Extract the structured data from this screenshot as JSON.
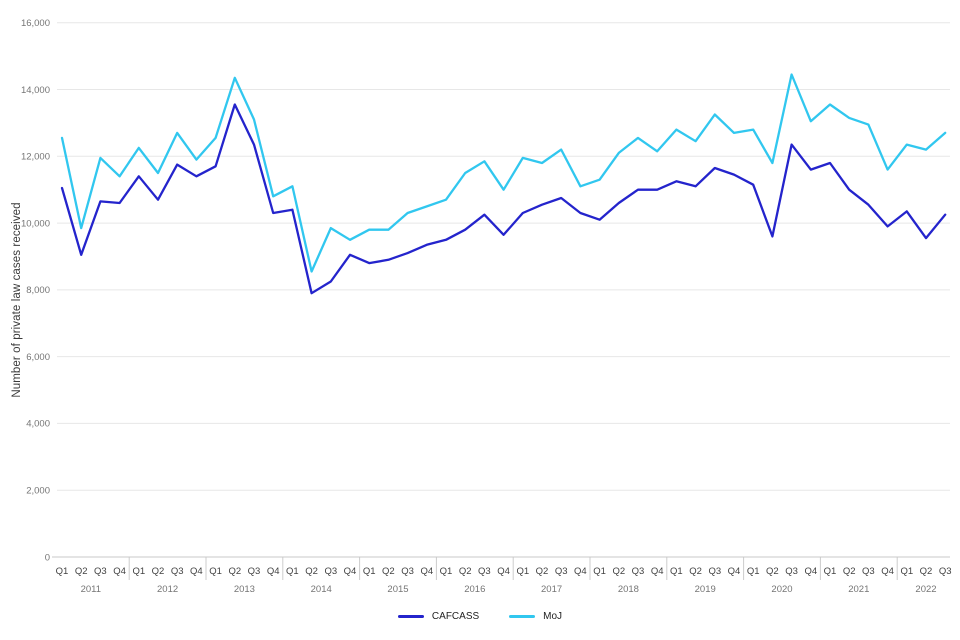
{
  "chart_data": {
    "type": "line",
    "title": "",
    "xlabel": "",
    "ylabel": "Number of private law cases received",
    "ylim": [
      0,
      16000
    ],
    "ytick_interval": 2000,
    "ytick_labels": [
      "0",
      "2,000",
      "4,000",
      "6,000",
      "8,000",
      "10,000",
      "12,000",
      "14,000",
      "16,000"
    ],
    "grid": "horizontal",
    "legend_position": "bottom-center",
    "categories": [
      "2011 Q1",
      "2011 Q2",
      "2011 Q3",
      "2011 Q4",
      "2012 Q1",
      "2012 Q2",
      "2012 Q3",
      "2012 Q4",
      "2013 Q1",
      "2013 Q2",
      "2013 Q3",
      "2013 Q4",
      "2014 Q1",
      "2014 Q2",
      "2014 Q3",
      "2014 Q4",
      "2015 Q1",
      "2015 Q2",
      "2015 Q3",
      "2015 Q4",
      "2016 Q1",
      "2016 Q2",
      "2016 Q3",
      "2016 Q4",
      "2017 Q1",
      "2017 Q2",
      "2017 Q3",
      "2017 Q4",
      "2018 Q1",
      "2018 Q2",
      "2018 Q3",
      "2018 Q4",
      "2019 Q1",
      "2019 Q2",
      "2019 Q3",
      "2019 Q4",
      "2020 Q1",
      "2020 Q2",
      "2020 Q3",
      "2020 Q4",
      "2021 Q1",
      "2021 Q2",
      "2021 Q3",
      "2021 Q4",
      "2022 Q1",
      "2022 Q2",
      "2022 Q3"
    ],
    "year_groups": [
      {
        "label": "2011",
        "count": 4
      },
      {
        "label": "2012",
        "count": 4
      },
      {
        "label": "2013",
        "count": 4
      },
      {
        "label": "2014",
        "count": 4
      },
      {
        "label": "2015",
        "count": 4
      },
      {
        "label": "2016",
        "count": 4
      },
      {
        "label": "2017",
        "count": 4
      },
      {
        "label": "2018",
        "count": 4
      },
      {
        "label": "2019",
        "count": 4
      },
      {
        "label": "2020",
        "count": 4
      },
      {
        "label": "2021",
        "count": 4
      },
      {
        "label": "2022",
        "count": 3
      }
    ],
    "series": [
      {
        "name": "CAFCASS",
        "color": "#2424CC",
        "values": [
          11050,
          9050,
          10650,
          10600,
          11400,
          10700,
          11750,
          11400,
          11700,
          13550,
          12350,
          10300,
          10400,
          7900,
          8250,
          9050,
          8800,
          8900,
          9100,
          9350,
          9500,
          9800,
          10250,
          9650,
          10300,
          10550,
          10750,
          10300,
          10100,
          10600,
          11000,
          11000,
          11250,
          11100,
          11650,
          11450,
          11150,
          9600,
          12350,
          11600,
          11800,
          11000,
          10550,
          9900,
          10350,
          9550,
          10250
        ]
      },
      {
        "name": "MoJ",
        "color": "#31C7EF",
        "values": [
          12550,
          9850,
          11950,
          11400,
          12250,
          11500,
          12700,
          11900,
          12550,
          14350,
          13100,
          10800,
          11100,
          8550,
          9850,
          9500,
          9800,
          9800,
          10300,
          10500,
          10700,
          11500,
          11850,
          11000,
          11950,
          11800,
          12200,
          11100,
          11300,
          12100,
          12550,
          12150,
          12800,
          12450,
          13250,
          12700,
          12800,
          11800,
          14450,
          13050,
          13550,
          13150,
          12950,
          11600,
          12350,
          12200,
          12700
        ]
      }
    ],
    "colors": {
      "background": "#ffffff",
      "gridline": "#e7e7e7",
      "axis_line": "#c8c8c8",
      "year_tick": "#cccccc",
      "ytick_label": "#757575",
      "quarter_label": "#424242",
      "year_label": "#757575",
      "axis_title": "#3a3a3a",
      "legend_text": "#222222"
    }
  }
}
